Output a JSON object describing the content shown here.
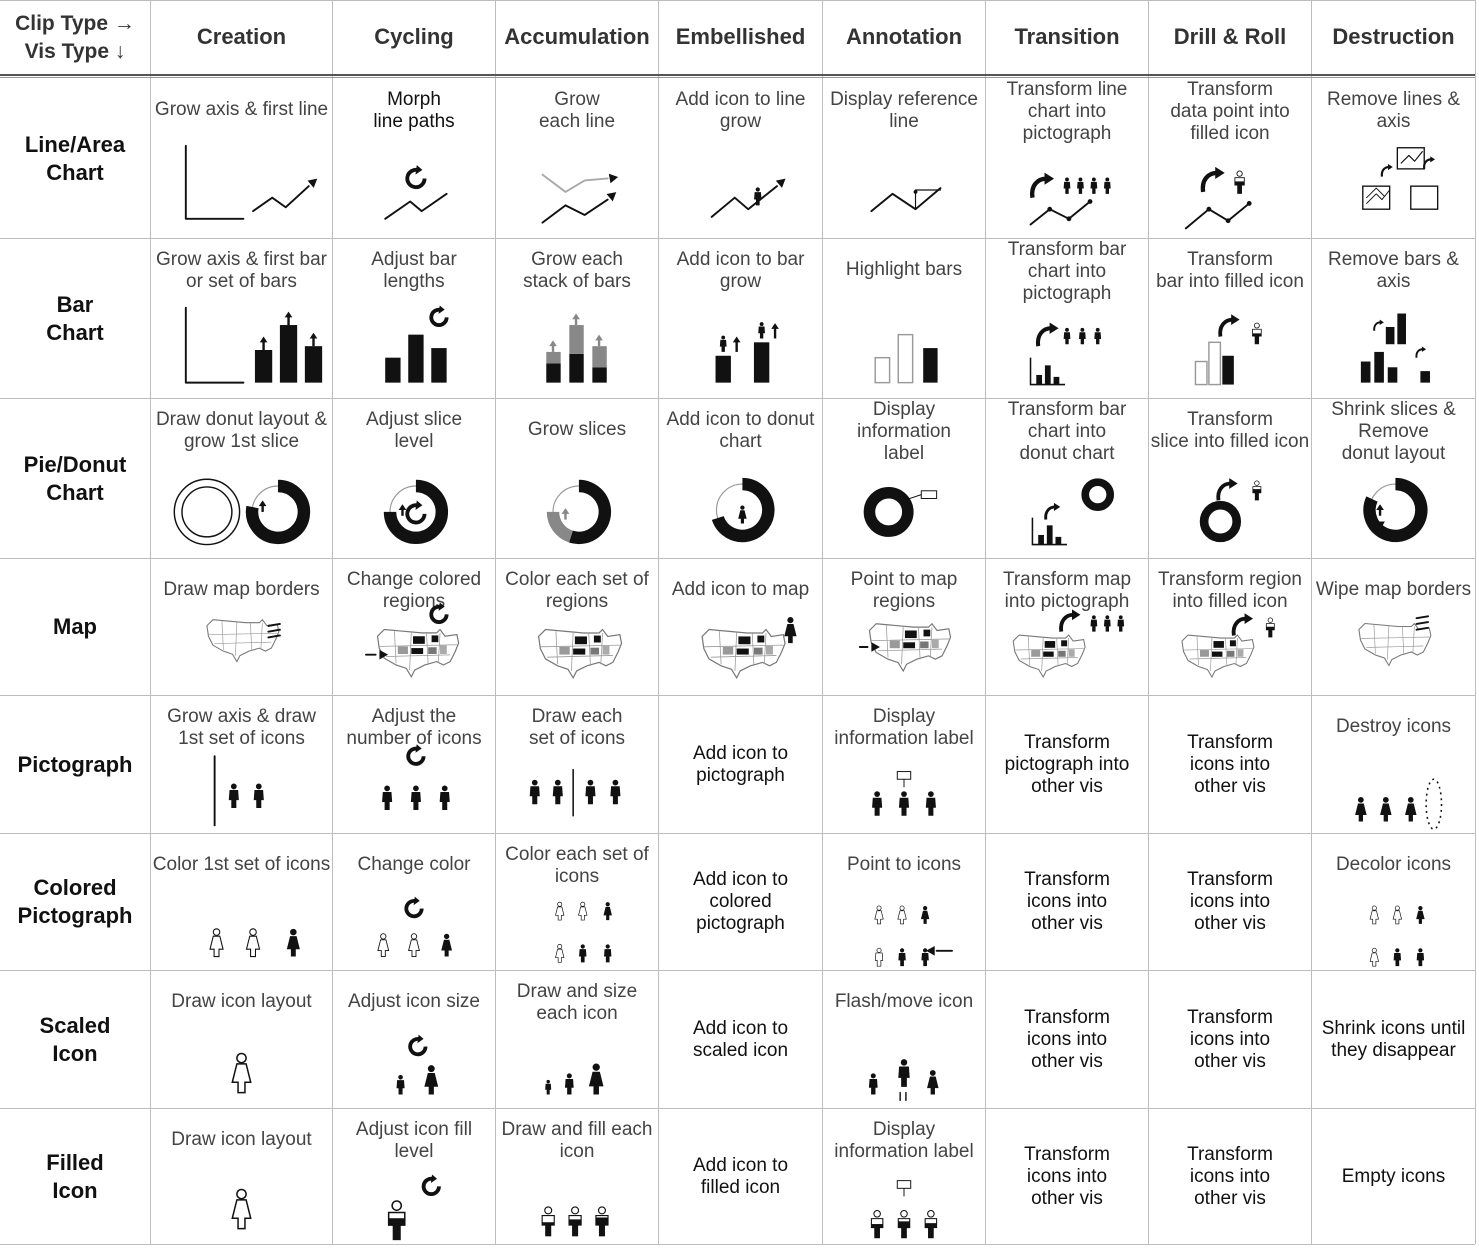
{
  "corner": {
    "line1": "Clip Type →",
    "line2": "Vis Type ↓"
  },
  "columns": [
    "Creation",
    "Cycling",
    "Accumulation",
    "Embellished",
    "Annotation",
    "Transition",
    "Drill & Roll",
    "Destruction"
  ],
  "rows": [
    {
      "label": "Line/Area\nChart",
      "cells": [
        {
          "text": "Grow axis & first line",
          "glyph": "line-axis"
        },
        {
          "text": "Morph\nline paths",
          "glyph": "line-morph",
          "dark": true
        },
        {
          "text": "Grow\neach line",
          "glyph": "line-grow"
        },
        {
          "text": "Add icon to line\ngrow",
          "glyph": "line-icon"
        },
        {
          "text": "Display reference\nline",
          "glyph": "line-ref"
        },
        {
          "text": "Transform line\nchart into\npictograph",
          "glyph": "line-to-picto"
        },
        {
          "text": "Transform\ndata point into\nfilled icon",
          "glyph": "line-to-icon"
        },
        {
          "text": "Remove lines &\naxis",
          "glyph": "line-remove"
        }
      ]
    },
    {
      "label": "Bar\nChart",
      "cells": [
        {
          "text": "Grow axis &  first bar\nor set of bars",
          "glyph": "bar-axis"
        },
        {
          "text": "Adjust bar\nlengths",
          "glyph": "bar-adjust"
        },
        {
          "text": "Grow each\nstack of bars",
          "glyph": "bar-stack"
        },
        {
          "text": "Add icon to bar\ngrow",
          "glyph": "bar-icon"
        },
        {
          "text": "Highlight bars",
          "glyph": "bar-highlight"
        },
        {
          "text": "Transform bar\nchart into\npictograph",
          "glyph": "bar-to-picto"
        },
        {
          "text": "Transform\nbar into filled icon",
          "glyph": "bar-to-icon"
        },
        {
          "text": "Remove bars &\naxis",
          "glyph": "bar-remove"
        }
      ]
    },
    {
      "label": "Pie/Donut\nChart",
      "cells": [
        {
          "text": "Draw donut layout &\ngrow 1st slice",
          "glyph": "donut-layout"
        },
        {
          "text": "Adjust slice\nlevel",
          "glyph": "donut-adjust"
        },
        {
          "text": "Grow slices",
          "glyph": "donut-grow"
        },
        {
          "text": "Add icon to donut\nchart",
          "glyph": "donut-icon"
        },
        {
          "text": "Display\ninformation\nlabel",
          "glyph": "donut-label"
        },
        {
          "text": "Transform bar\nchart into\ndonut chart",
          "glyph": "bar-to-donut"
        },
        {
          "text": "Transform\nslice into filled icon",
          "glyph": "slice-to-icon"
        },
        {
          "text": "Shrink slices &\nRemove\ndonut layout",
          "glyph": "donut-shrink"
        }
      ]
    },
    {
      "label": "Map",
      "cells": [
        {
          "text": "Draw map borders",
          "glyph": "map-draw"
        },
        {
          "text": "Change colored\nregions",
          "glyph": "map-change"
        },
        {
          "text": "Color each set of\nregions",
          "glyph": "map-color"
        },
        {
          "text": "Add icon to map",
          "glyph": "map-icon"
        },
        {
          "text": "Point to map\nregions",
          "glyph": "map-point"
        },
        {
          "text": "Transform map\ninto pictograph",
          "glyph": "map-to-picto"
        },
        {
          "text": "Transform region\ninto filled icon",
          "glyph": "map-to-icon"
        },
        {
          "text": "Wipe map borders",
          "glyph": "map-wipe"
        }
      ]
    },
    {
      "label": "Pictograph",
      "cells": [
        {
          "text": "Grow axis & draw\n1st set of icons",
          "glyph": "picto-axis"
        },
        {
          "text": "Adjust the\nnumber of icons",
          "glyph": "picto-adjust"
        },
        {
          "text": "Draw each\nset of icons",
          "glyph": "picto-draw"
        },
        {
          "text": "Add icon to\npictograph",
          "mid": true,
          "dark": true
        },
        {
          "text": "Display\ninformation label",
          "glyph": "picto-label"
        },
        {
          "text": "Transform\npictograph into\nother vis",
          "mid": true,
          "dark": true
        },
        {
          "text": "Transform\nicons into\nother vis",
          "mid": true,
          "dark": true
        },
        {
          "text": "Destroy icons",
          "glyph": "picto-destroy"
        }
      ]
    },
    {
      "label": "Colored\nPictograph",
      "cells": [
        {
          "text": "Color 1st set of icons",
          "glyph": "cpicto-color"
        },
        {
          "text": "Change color",
          "glyph": "cpicto-change"
        },
        {
          "text": "Color each set of\nicons",
          "glyph": "cpicto-each"
        },
        {
          "text": "Add icon to\ncolored\npictograph",
          "mid": true,
          "dark": true
        },
        {
          "text": "Point to icons",
          "glyph": "cpicto-point"
        },
        {
          "text": "Transform\nicons into\nother vis",
          "mid": true,
          "dark": true
        },
        {
          "text": "Transform\nicons into\nother vis",
          "mid": true,
          "dark": true
        },
        {
          "text": "Decolor icons",
          "glyph": "cpicto-decolor"
        }
      ]
    },
    {
      "label": "Scaled\nIcon",
      "cells": [
        {
          "text": "Draw icon layout",
          "glyph": "scaled-layout"
        },
        {
          "text": "Adjust icon size",
          "glyph": "scaled-adjust"
        },
        {
          "text": "Draw and size\neach icon",
          "glyph": "scaled-draw"
        },
        {
          "text": "Add icon to\nscaled icon",
          "mid": true,
          "dark": true
        },
        {
          "text": "Flash/move icon",
          "glyph": "scaled-flash"
        },
        {
          "text": "Transform\nicons into\nother vis",
          "mid": true,
          "dark": true
        },
        {
          "text": "Transform\nicons into\nother vis",
          "mid": true,
          "dark": true
        },
        {
          "text": "Shrink icons until\nthey disappear",
          "mid": true,
          "dark": true
        }
      ]
    },
    {
      "label": "Filled\nIcon",
      "cells": [
        {
          "text": "Draw icon layout",
          "glyph": "filled-layout"
        },
        {
          "text": "Adjust icon fill\nlevel",
          "glyph": "filled-adjust"
        },
        {
          "text": "Draw and fill each\nicon",
          "glyph": "filled-draw"
        },
        {
          "text": "Add icon to\nfilled icon",
          "mid": true,
          "dark": true
        },
        {
          "text": "Display\ninformation label",
          "glyph": "filled-label"
        },
        {
          "text": "Transform\nicons into\nother vis",
          "mid": true,
          "dark": true
        },
        {
          "text": "Transform\nicons into\nother vis",
          "mid": true,
          "dark": true
        },
        {
          "text": "Empty icons",
          "mid": true,
          "dark": true
        }
      ]
    }
  ]
}
